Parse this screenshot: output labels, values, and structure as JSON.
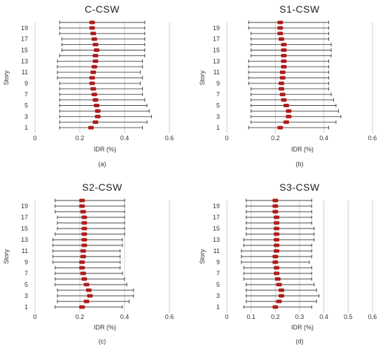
{
  "figure": {
    "colors": {
      "marker": "#b01c1c",
      "whisker": "#444444",
      "grid": "#cfcfcf",
      "axis": "#888888"
    }
  },
  "chart_data": [
    {
      "type": "errorbar",
      "title": "C-CSW",
      "caption": "(a)",
      "xlabel": "IDR (%)",
      "ylabel": "Story",
      "xlim": [
        0,
        0.6
      ],
      "xticks": [
        "0",
        "0.2",
        "0.4",
        "0.6"
      ],
      "xtick_values": [
        0,
        0.2,
        0.4,
        0.6
      ],
      "ylim": [
        0,
        20
      ],
      "ytick_values": [
        1,
        3,
        5,
        7,
        9,
        11,
        13,
        15,
        17,
        19
      ],
      "yticks": [
        "1",
        "3",
        "5",
        "7",
        "9",
        "11",
        "13",
        "15",
        "17",
        "19"
      ],
      "grid": true,
      "stories": [
        1,
        2,
        3,
        4,
        5,
        6,
        7,
        8,
        9,
        10,
        11,
        12,
        13,
        14,
        15,
        16,
        17,
        18,
        19,
        20
      ],
      "mean": [
        0.25,
        0.27,
        0.28,
        0.28,
        0.275,
        0.27,
        0.265,
        0.26,
        0.255,
        0.255,
        0.26,
        0.265,
        0.27,
        0.27,
        0.275,
        0.27,
        0.265,
        0.26,
        0.255,
        0.255
      ],
      "min": [
        0.11,
        0.11,
        0.11,
        0.11,
        0.11,
        0.11,
        0.11,
        0.11,
        0.11,
        0.1,
        0.1,
        0.1,
        0.1,
        0.11,
        0.12,
        0.12,
        0.12,
        0.11,
        0.11,
        0.11
      ],
      "max": [
        0.48,
        0.5,
        0.52,
        0.51,
        0.5,
        0.49,
        0.48,
        0.48,
        0.47,
        0.48,
        0.47,
        0.48,
        0.48,
        0.49,
        0.49,
        0.49,
        0.49,
        0.49,
        0.49,
        0.49
      ]
    },
    {
      "type": "errorbar",
      "title": "S1-CSW",
      "caption": "(b)",
      "xlabel": "IDR (%)",
      "ylabel": "Story",
      "xlim": [
        0,
        0.6
      ],
      "xticks": [
        "0",
        "0.2",
        "0.4",
        "0.6"
      ],
      "xtick_values": [
        0,
        0.2,
        0.4,
        0.6
      ],
      "ylim": [
        0,
        20
      ],
      "ytick_values": [
        1,
        3,
        5,
        7,
        9,
        11,
        13,
        15,
        17,
        19
      ],
      "yticks": [
        "1",
        "3",
        "5",
        "7",
        "9",
        "11",
        "13",
        "15",
        "17",
        "19"
      ],
      "grid": true,
      "stories": [
        1,
        2,
        3,
        4,
        5,
        6,
        7,
        8,
        9,
        10,
        11,
        12,
        13,
        14,
        15,
        16,
        17,
        18,
        19,
        20
      ],
      "mean": [
        0.22,
        0.245,
        0.255,
        0.255,
        0.245,
        0.235,
        0.23,
        0.225,
        0.225,
        0.23,
        0.23,
        0.235,
        0.235,
        0.235,
        0.235,
        0.235,
        0.225,
        0.22,
        0.22,
        0.22
      ],
      "min": [
        0.09,
        0.1,
        0.1,
        0.1,
        0.1,
        0.1,
        0.1,
        0.1,
        0.09,
        0.09,
        0.09,
        0.09,
        0.09,
        0.1,
        0.1,
        0.1,
        0.1,
        0.1,
        0.09,
        0.09
      ],
      "max": [
        0.42,
        0.45,
        0.47,
        0.46,
        0.45,
        0.44,
        0.43,
        0.42,
        0.42,
        0.42,
        0.42,
        0.42,
        0.42,
        0.43,
        0.43,
        0.43,
        0.42,
        0.42,
        0.42,
        0.42
      ]
    },
    {
      "type": "errorbar",
      "title": "S2-CSW",
      "caption": "(c)",
      "xlabel": "IDR (%)",
      "ylabel": "Story",
      "xlim": [
        0,
        0.6
      ],
      "xticks": [
        "0",
        "0.2",
        "0.4",
        "0.6"
      ],
      "xtick_values": [
        0,
        0.2,
        0.4,
        0.6
      ],
      "ylim": [
        0,
        20
      ],
      "ytick_values": [
        1,
        3,
        5,
        7,
        9,
        11,
        13,
        15,
        17,
        19
      ],
      "yticks": [
        "1",
        "3",
        "5",
        "7",
        "9",
        "11",
        "13",
        "15",
        "17",
        "19"
      ],
      "grid": true,
      "stories": [
        1,
        2,
        3,
        4,
        5,
        6,
        7,
        8,
        9,
        10,
        11,
        12,
        13,
        14,
        15,
        16,
        17,
        18,
        19,
        20
      ],
      "mean": [
        0.21,
        0.23,
        0.245,
        0.24,
        0.23,
        0.22,
        0.215,
        0.21,
        0.21,
        0.215,
        0.215,
        0.22,
        0.22,
        0.22,
        0.22,
        0.22,
        0.22,
        0.215,
        0.21,
        0.21
      ],
      "min": [
        0.09,
        0.1,
        0.1,
        0.1,
        0.09,
        0.09,
        0.09,
        0.09,
        0.08,
        0.08,
        0.08,
        0.08,
        0.08,
        0.09,
        0.1,
        0.1,
        0.1,
        0.09,
        0.09,
        0.09
      ],
      "max": [
        0.39,
        0.42,
        0.44,
        0.44,
        0.41,
        0.4,
        0.39,
        0.38,
        0.38,
        0.38,
        0.38,
        0.39,
        0.39,
        0.4,
        0.4,
        0.4,
        0.4,
        0.4,
        0.4,
        0.4
      ]
    },
    {
      "type": "errorbar",
      "title": "S3-CSW",
      "caption": "(d)",
      "xlabel": "IDR (%)",
      "ylabel": "Story",
      "xlim": [
        0,
        0.6
      ],
      "xticks": [
        "0",
        "0.1",
        "0.2",
        "0.3",
        "0.4",
        "0.5",
        "0.6"
      ],
      "xtick_values": [
        0,
        0.1,
        0.2,
        0.3,
        0.4,
        0.5,
        0.6
      ],
      "ylim": [
        0,
        20
      ],
      "ytick_values": [
        1,
        3,
        5,
        7,
        9,
        11,
        13,
        15,
        17,
        19
      ],
      "yticks": [
        "1",
        "3",
        "5",
        "7",
        "9",
        "11",
        "13",
        "15",
        "17",
        "19"
      ],
      "grid": true,
      "stories": [
        1,
        2,
        3,
        4,
        5,
        6,
        7,
        8,
        9,
        10,
        11,
        12,
        13,
        14,
        15,
        16,
        17,
        18,
        19,
        20
      ],
      "mean": [
        0.2,
        0.215,
        0.225,
        0.225,
        0.215,
        0.21,
        0.205,
        0.205,
        0.2,
        0.2,
        0.205,
        0.205,
        0.205,
        0.205,
        0.205,
        0.205,
        0.205,
        0.2,
        0.2,
        0.2
      ],
      "min": [
        0.07,
        0.08,
        0.08,
        0.08,
        0.08,
        0.07,
        0.07,
        0.07,
        0.06,
        0.06,
        0.06,
        0.07,
        0.07,
        0.08,
        0.08,
        0.08,
        0.08,
        0.08,
        0.08,
        0.08
      ],
      "max": [
        0.35,
        0.37,
        0.38,
        0.37,
        0.36,
        0.35,
        0.35,
        0.35,
        0.34,
        0.35,
        0.35,
        0.35,
        0.36,
        0.36,
        0.36,
        0.35,
        0.35,
        0.35,
        0.35,
        0.35
      ]
    }
  ]
}
